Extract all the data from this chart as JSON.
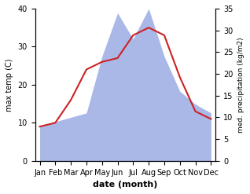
{
  "months": [
    "Jan",
    "Feb",
    "Mar",
    "Apr",
    "May",
    "Jun",
    "Jul",
    "Aug",
    "Sep",
    "Oct",
    "Nov",
    "Dec"
  ],
  "temperature": [
    9,
    10,
    16,
    24,
    26,
    27,
    33,
    35,
    33,
    22,
    13,
    11
  ],
  "precipitation": [
    8,
    9,
    10,
    11,
    24,
    34,
    28,
    35,
    24,
    16,
    13,
    11
  ],
  "temp_color": "#cc2222",
  "precip_color": "#aab8e8",
  "ylim_left": [
    0,
    40
  ],
  "ylim_right": [
    0,
    35
  ],
  "yticks_left": [
    0,
    10,
    20,
    30,
    40
  ],
  "yticks_right": [
    0,
    5,
    10,
    15,
    20,
    25,
    30,
    35
  ],
  "xlabel": "date (month)",
  "ylabel_left": "max temp (C)",
  "ylabel_right": "med. precipitation (kg/m2)",
  "background_color": "#ffffff",
  "figsize": [
    3.18,
    2.47
  ],
  "dpi": 100
}
